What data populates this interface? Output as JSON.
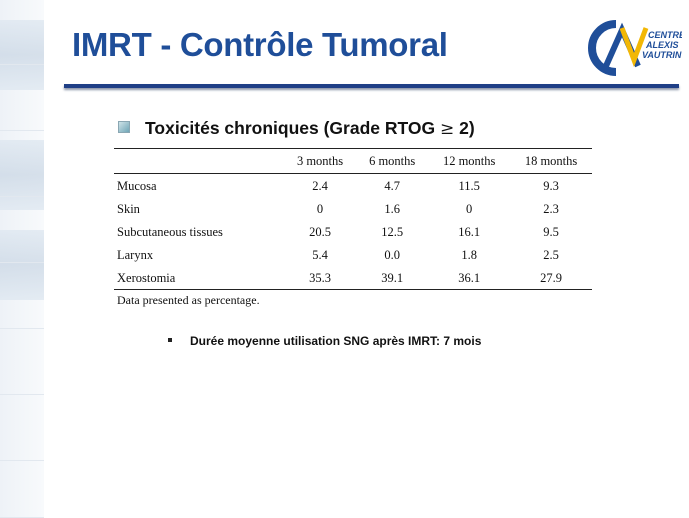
{
  "slide": {
    "title": "IMRT - Contrôle Tumoral",
    "logo": {
      "line1": "CENTRE",
      "line2": "ALEXIS",
      "line3": "VAUTRIN",
      "colors": [
        "#1f4e99",
        "#f2b705"
      ]
    },
    "heading": {
      "text": "Toxicités chroniques (Grade RTOG ",
      "symbol": "≥",
      "suffix": " 2)"
    },
    "table": {
      "columns": [
        "",
        "3 months",
        "6 months",
        "12 months",
        "18 months"
      ],
      "rows": [
        {
          "label": "Mucosa",
          "values": [
            "2.4",
            "4.7",
            "11.5",
            "9.3"
          ]
        },
        {
          "label": "Skin",
          "values": [
            "0",
            "1.6",
            "0",
            "2.3"
          ]
        },
        {
          "label": "Subcutaneous tissues",
          "values": [
            "20.5",
            "12.5",
            "16.1",
            "9.5"
          ]
        },
        {
          "label": "Larynx",
          "values": [
            "5.4",
            "0.0",
            "1.8",
            "2.5"
          ]
        },
        {
          "label": "Xerostomia",
          "values": [
            "35.3",
            "39.1",
            "36.1",
            "27.9"
          ]
        }
      ],
      "footnote": "Data presented as percentage."
    },
    "note": "Durée moyenne utilisation SNG après IMRT: 7 mois"
  }
}
